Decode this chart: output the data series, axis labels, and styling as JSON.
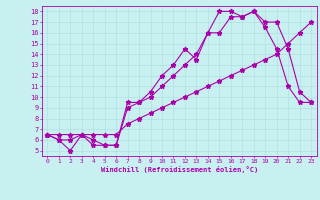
{
  "title": "",
  "xlabel": "Windchill (Refroidissement éolien,°C)",
  "bg_color": "#c8f0f0",
  "line_color": "#aa00aa",
  "grid_color": "#b0e0e0",
  "xlim": [
    -0.5,
    23.5
  ],
  "ylim": [
    4.5,
    18.5
  ],
  "xticks": [
    0,
    1,
    2,
    3,
    4,
    5,
    6,
    7,
    8,
    9,
    10,
    11,
    12,
    13,
    14,
    15,
    16,
    17,
    18,
    19,
    20,
    21,
    22,
    23
  ],
  "yticks": [
    5,
    6,
    7,
    8,
    9,
    10,
    11,
    12,
    13,
    14,
    15,
    16,
    17,
    18
  ],
  "lines": [
    {
      "x": [
        0,
        1,
        2,
        3,
        4,
        5,
        6,
        7,
        8,
        9,
        10,
        11,
        12,
        13,
        14,
        15,
        16,
        17,
        18,
        19,
        20,
        21,
        22,
        23
      ],
      "y": [
        6.5,
        6.5,
        6.5,
        6.5,
        6.5,
        6.5,
        6.5,
        7.5,
        8.0,
        8.5,
        9.0,
        9.5,
        10.0,
        10.5,
        11.0,
        11.5,
        12.0,
        12.5,
        13.0,
        13.5,
        14.0,
        15.0,
        16.0,
        17.0
      ]
    },
    {
      "x": [
        0,
        1,
        2,
        3,
        4,
        5,
        6,
        7,
        8,
        9,
        10,
        11,
        12,
        13,
        14,
        15,
        16,
        17,
        18,
        19,
        20,
        21,
        22,
        23
      ],
      "y": [
        6.5,
        6.0,
        5.0,
        6.5,
        6.0,
        5.5,
        5.5,
        9.5,
        9.5,
        10.5,
        12.0,
        13.0,
        14.5,
        13.5,
        16.0,
        18.0,
        18.0,
        17.5,
        18.0,
        17.0,
        17.0,
        14.5,
        10.5,
        9.5
      ]
    },
    {
      "x": [
        0,
        1,
        2,
        3,
        4,
        5,
        6,
        7,
        8,
        9,
        10,
        11,
        12,
        13,
        14,
        15,
        16,
        17,
        18,
        19,
        20,
        21,
        22,
        23
      ],
      "y": [
        6.5,
        6.0,
        6.0,
        6.5,
        5.5,
        5.5,
        5.5,
        9.0,
        9.5,
        10.0,
        11.0,
        12.0,
        13.0,
        14.0,
        16.0,
        16.0,
        17.5,
        17.5,
        18.0,
        16.5,
        14.5,
        11.0,
        9.5,
        9.5
      ]
    }
  ]
}
